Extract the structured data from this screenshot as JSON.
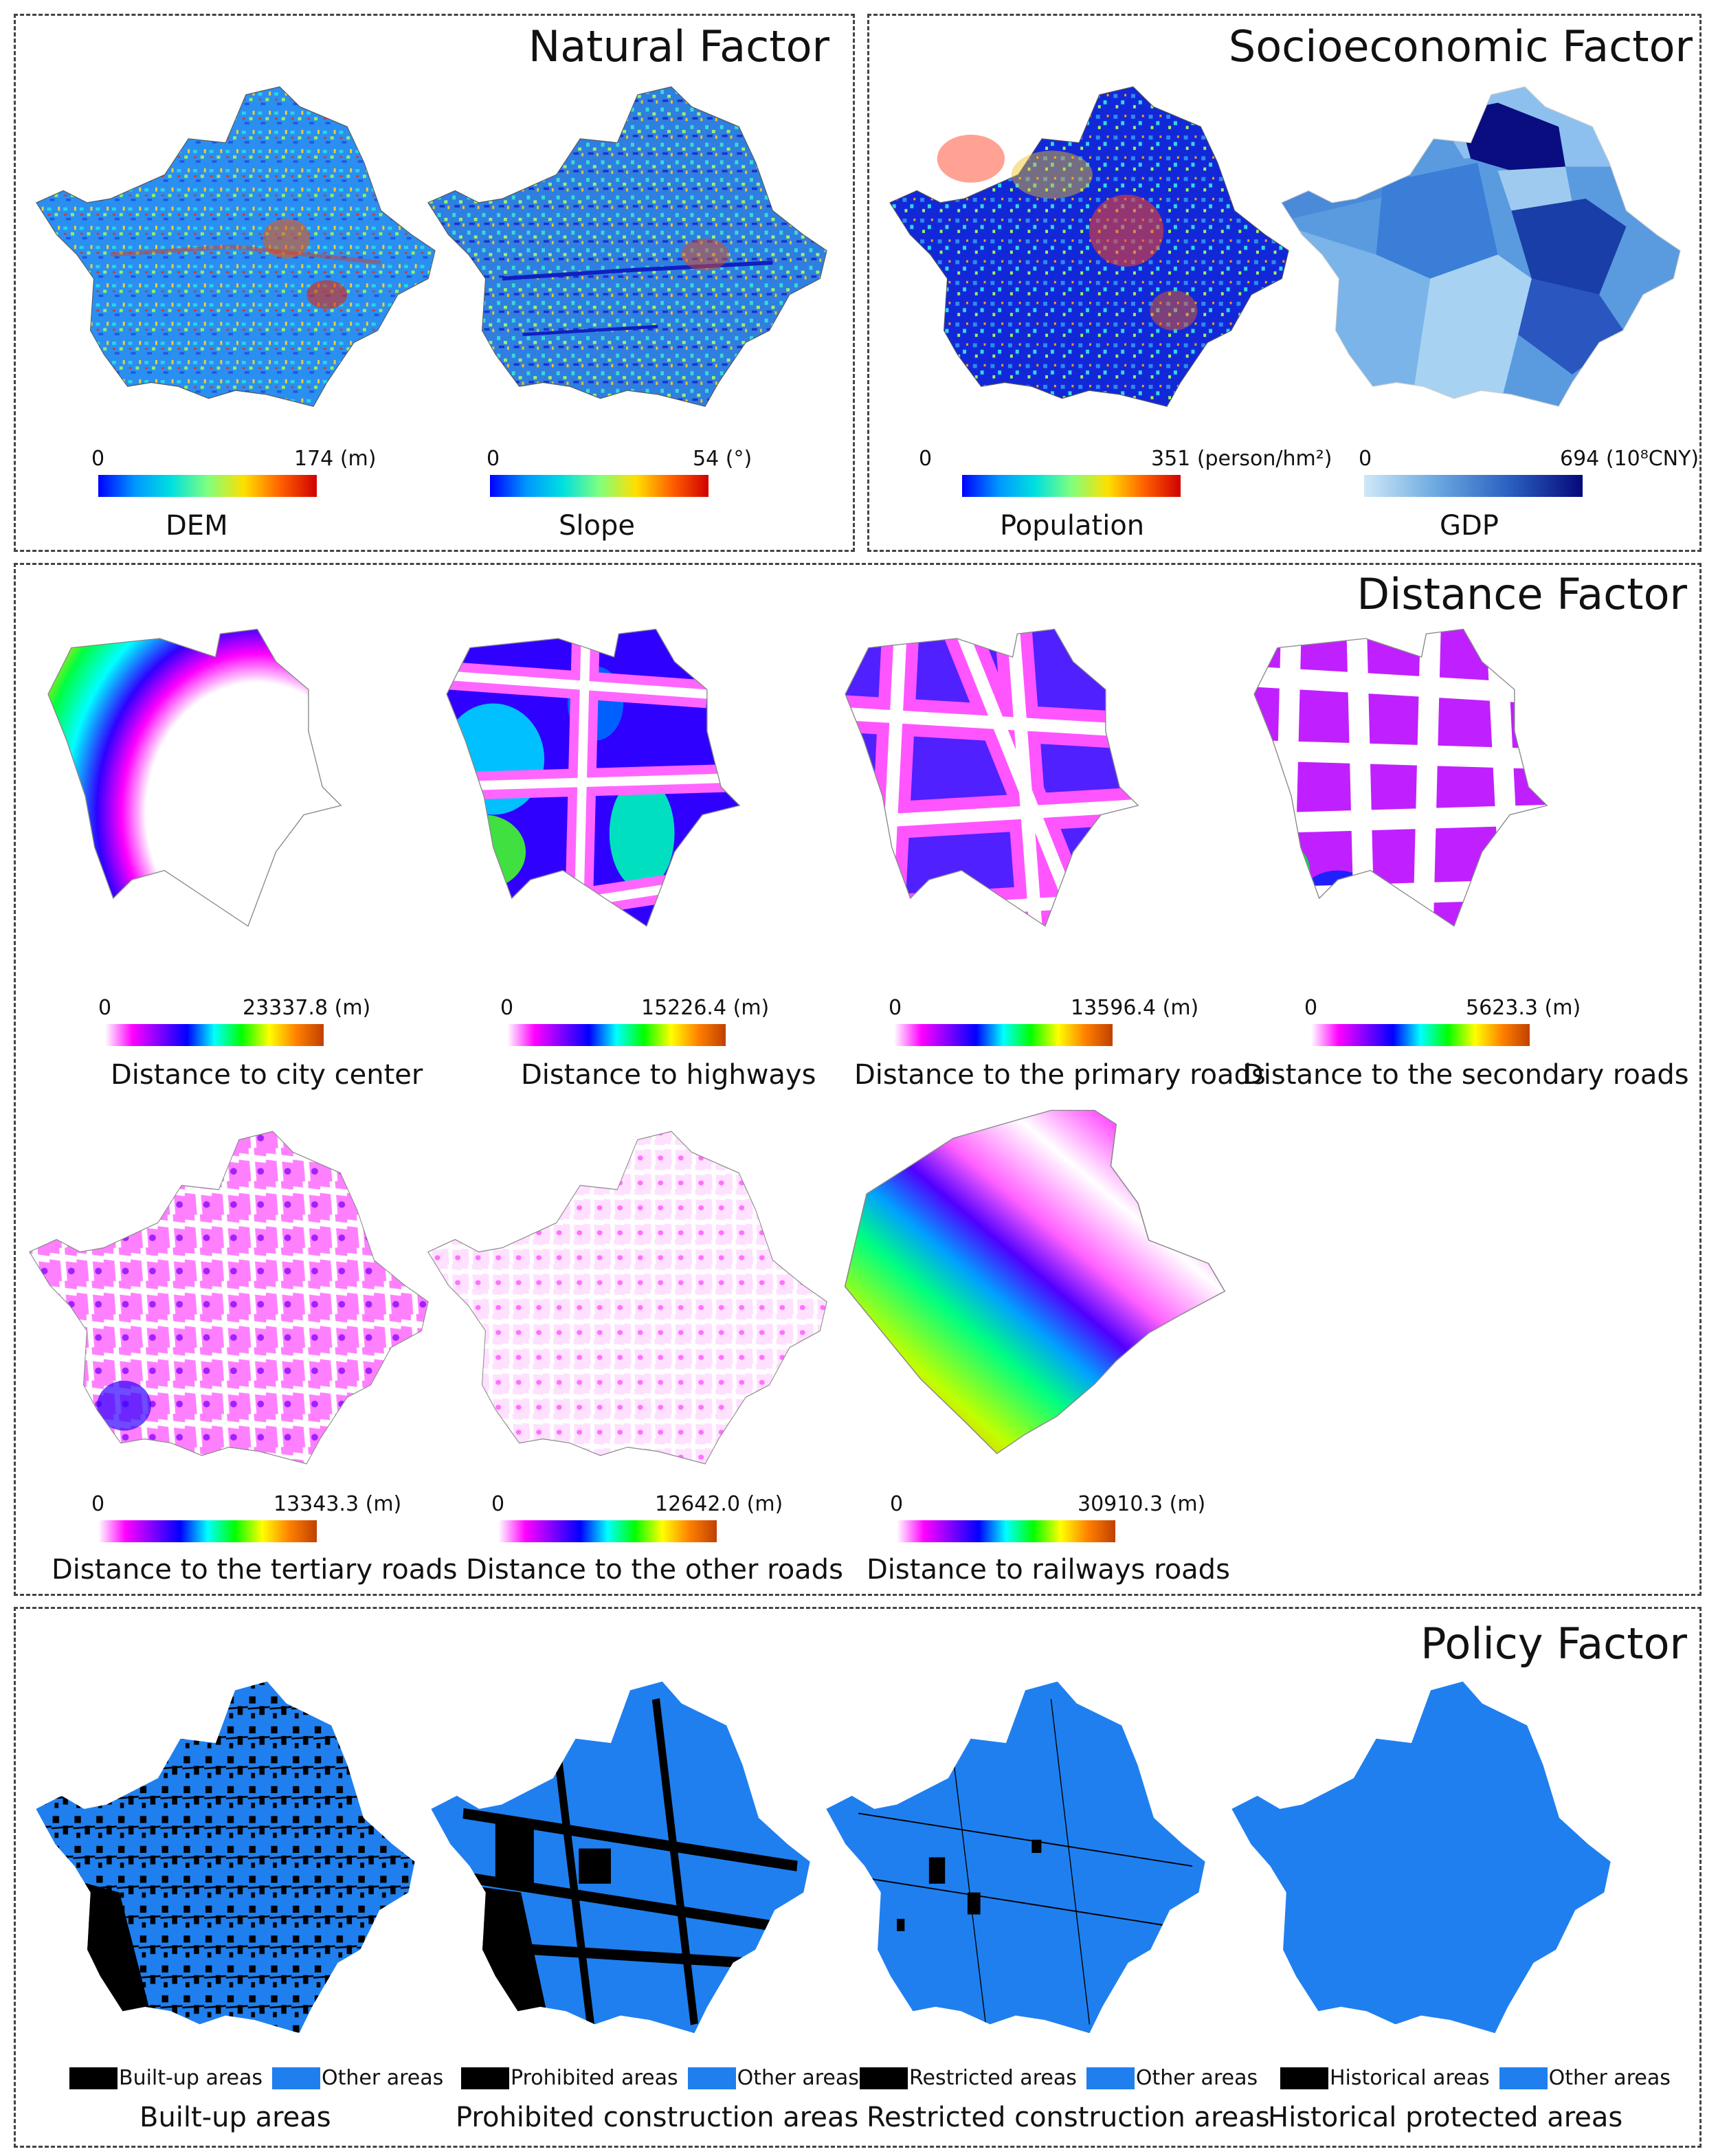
{
  "panels": {
    "natural": "Natural Factor",
    "socio": "Socioeconomic Factor",
    "distance": "Distance Factor",
    "policy": "Policy Factor"
  },
  "maps": {
    "dem": {
      "caption": "DEM",
      "min": "0",
      "max": "174",
      "unit": "(m)"
    },
    "slope": {
      "caption": "Slope",
      "min": "0",
      "max": "54",
      "unit": "(°)"
    },
    "pop": {
      "caption": "Population",
      "min": "0",
      "max": "351",
      "unit": "(person/hm²)"
    },
    "gdp": {
      "caption": "GDP",
      "min": "0",
      "max": "694",
      "unit": "(10⁸CNY)"
    },
    "d_city": {
      "caption": "Distance to city center",
      "min": "0",
      "max": "23337.8",
      "unit": "(m)"
    },
    "d_highway": {
      "caption": "Distance to highways",
      "min": "0",
      "max": "15226.4",
      "unit": "(m)"
    },
    "d_primary": {
      "caption": "Distance to the primary roads",
      "min": "0",
      "max": "13596.4",
      "unit": "(m)"
    },
    "d_secondary": {
      "caption": "Distance to the secondary roads",
      "min": "0",
      "max": "5623.3",
      "unit": "(m)"
    },
    "d_tertiary": {
      "caption": "Distance to the tertiary roads",
      "min": "0",
      "max": "13343.3",
      "unit": "(m)"
    },
    "d_other": {
      "caption": "Distance to the other roads",
      "min": "0",
      "max": "12642.0",
      "unit": "(m)"
    },
    "d_rail": {
      "caption": "Distance to railways roads",
      "min": "0",
      "max": "30910.3",
      "unit": "(m)"
    },
    "builtup": {
      "caption": "Built-up areas",
      "legend_a": "Built-up areas",
      "legend_b": "Other areas"
    },
    "prohibited": {
      "caption": "Prohibited construction areas",
      "legend_a": "Prohibited areas",
      "legend_b": "Other areas"
    },
    "restricted": {
      "caption": "Restricted construction areas",
      "legend_a": "Restricted areas",
      "legend_b": "Other areas"
    },
    "historical": {
      "caption": "Historical protected areas",
      "legend_a": "Historical areas",
      "legend_b": "Other areas"
    }
  },
  "colors": {
    "policy_blue": "#1f7fef",
    "policy_black": "#000000",
    "jet": [
      "#0000ff",
      "#0096ff",
      "#00e0e0",
      "#7fff7f",
      "#ffe000",
      "#ff6000",
      "#d00000"
    ],
    "dist": [
      "#ffffff",
      "#ff00ff",
      "#8000ff",
      "#0000ff",
      "#00ffff",
      "#00ff00",
      "#ffff00",
      "#ff8000",
      "#c04000"
    ],
    "gdp": [
      "#cfe8f8",
      "#6aa8e0",
      "#2a60c0",
      "#06087a"
    ]
  }
}
